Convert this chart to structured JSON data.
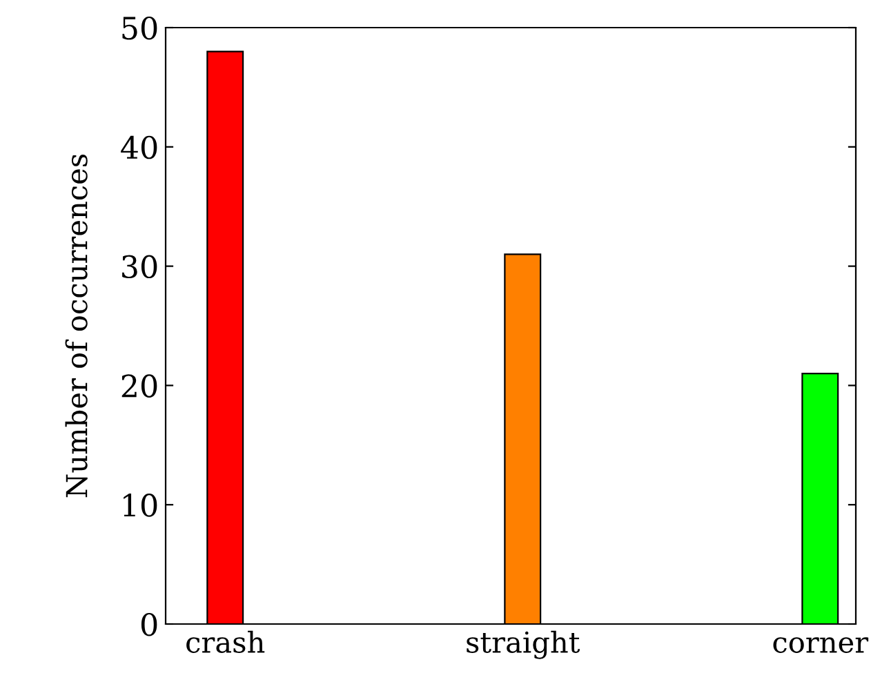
{
  "chart_data": {
    "type": "bar",
    "ylabel": "Number of occurrences",
    "categories": [
      "crash",
      "straight",
      "corner"
    ],
    "values": [
      48,
      31,
      21
    ],
    "colors": [
      "#ff0000",
      "#ff8000",
      "#00ff00"
    ],
    "ylim": [
      0,
      50
    ],
    "yticks": [
      0,
      10,
      20,
      30,
      40,
      50
    ],
    "grid": false,
    "legend": false
  }
}
